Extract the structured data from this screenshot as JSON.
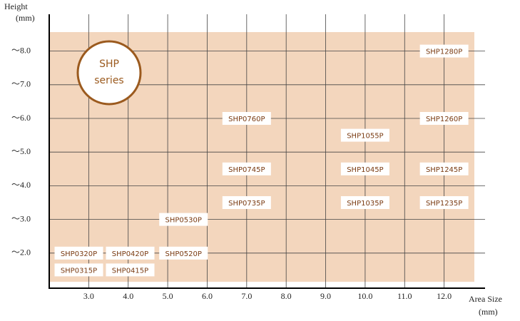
{
  "chart_data": {
    "type": "scatter",
    "y_label": [
      "Height",
      "(mm)"
    ],
    "x_label": [
      "Area Size",
      "(mm)"
    ],
    "annotation": [
      "SHP",
      "series"
    ],
    "background_color": "#f3d6bd",
    "annotation_color": "#9b5a1e",
    "grid": true,
    "xlim": [
      2,
      13
    ],
    "ylim": [
      1,
      9
    ],
    "xticks": [
      {
        "value": 3,
        "label": "3.0"
      },
      {
        "value": 4,
        "label": "4.0"
      },
      {
        "value": 5,
        "label": "5.0"
      },
      {
        "value": 6,
        "label": "6.0"
      },
      {
        "value": 7,
        "label": "7.0"
      },
      {
        "value": 8,
        "label": "8.0"
      },
      {
        "value": 9,
        "label": "9.0"
      },
      {
        "value": 10,
        "label": "10.0"
      },
      {
        "value": 11,
        "label": "11.0"
      },
      {
        "value": 12,
        "label": "12.0"
      }
    ],
    "yticks": [
      {
        "value": 2,
        "label": "～2.0"
      },
      {
        "value": 3,
        "label": "～3.0"
      },
      {
        "value": 4,
        "label": "～4.0"
      },
      {
        "value": 5,
        "label": "～5.0"
      },
      {
        "value": 6,
        "label": "～6.0"
      },
      {
        "value": 7,
        "label": "～7.0"
      },
      {
        "value": 8,
        "label": "～8.0"
      }
    ],
    "points": [
      {
        "label": "SHP0320P",
        "x": 2.75,
        "y": 2.0
      },
      {
        "label": "SHP0315P",
        "x": 2.75,
        "y": 1.5
      },
      {
        "label": "SHP0420P",
        "x": 4.05,
        "y": 2.0
      },
      {
        "label": "SHP0415P",
        "x": 4.05,
        "y": 1.5
      },
      {
        "label": "SHP0520P",
        "x": 5.4,
        "y": 2.0
      },
      {
        "label": "SHP0530P",
        "x": 5.4,
        "y": 3.0
      },
      {
        "label": "SHP0760P",
        "x": 7.0,
        "y": 6.0
      },
      {
        "label": "SHP0745P",
        "x": 7.0,
        "y": 4.5
      },
      {
        "label": "SHP0735P",
        "x": 7.0,
        "y": 3.5
      },
      {
        "label": "SHP1055P",
        "x": 10.0,
        "y": 5.5
      },
      {
        "label": "SHP1045P",
        "x": 10.0,
        "y": 4.5
      },
      {
        "label": "SHP1035P",
        "x": 10.0,
        "y": 3.5
      },
      {
        "label": "SHP1280P",
        "x": 12.0,
        "y": 8.0
      },
      {
        "label": "SHP1260P",
        "x": 12.0,
        "y": 6.0
      },
      {
        "label": "SHP1245P",
        "x": 12.0,
        "y": 4.5
      },
      {
        "label": "SHP1235P",
        "x": 12.0,
        "y": 3.5
      }
    ]
  }
}
